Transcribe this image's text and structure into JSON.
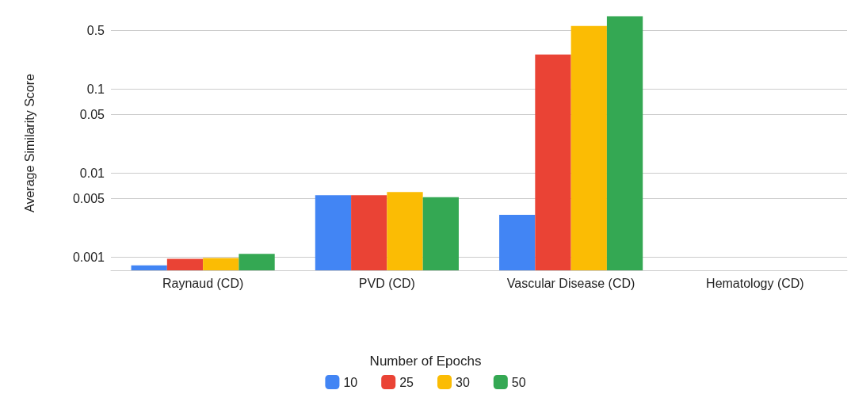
{
  "chart_data": {
    "type": "bar",
    "ylabel": "Average Similarity Score",
    "legend_title": "Number of Epochs",
    "categories": [
      "Raynaud (CD)",
      "PVD (CD)",
      "Vascular Disease (CD)",
      "Hematology (CD)"
    ],
    "series": [
      {
        "name": "10",
        "color": "#4285f4",
        "values": [
          0.0008,
          0.0055,
          0.0032,
          null
        ]
      },
      {
        "name": "25",
        "color": "#ea4335",
        "values": [
          0.00096,
          0.0055,
          0.26,
          null
        ]
      },
      {
        "name": "30",
        "color": "#fbbc04",
        "values": [
          0.00098,
          0.006,
          0.57,
          null
        ]
      },
      {
        "name": "50",
        "color": "#34a853",
        "values": [
          0.0011,
          0.0052,
          0.74,
          null
        ]
      }
    ],
    "log": "y",
    "ylim": [
      0.0007,
      0.75
    ],
    "yticks": [
      0.001,
      0.005,
      0.01,
      0.05,
      0.1,
      0.5
    ],
    "grid": "y",
    "legend": "bottom"
  }
}
